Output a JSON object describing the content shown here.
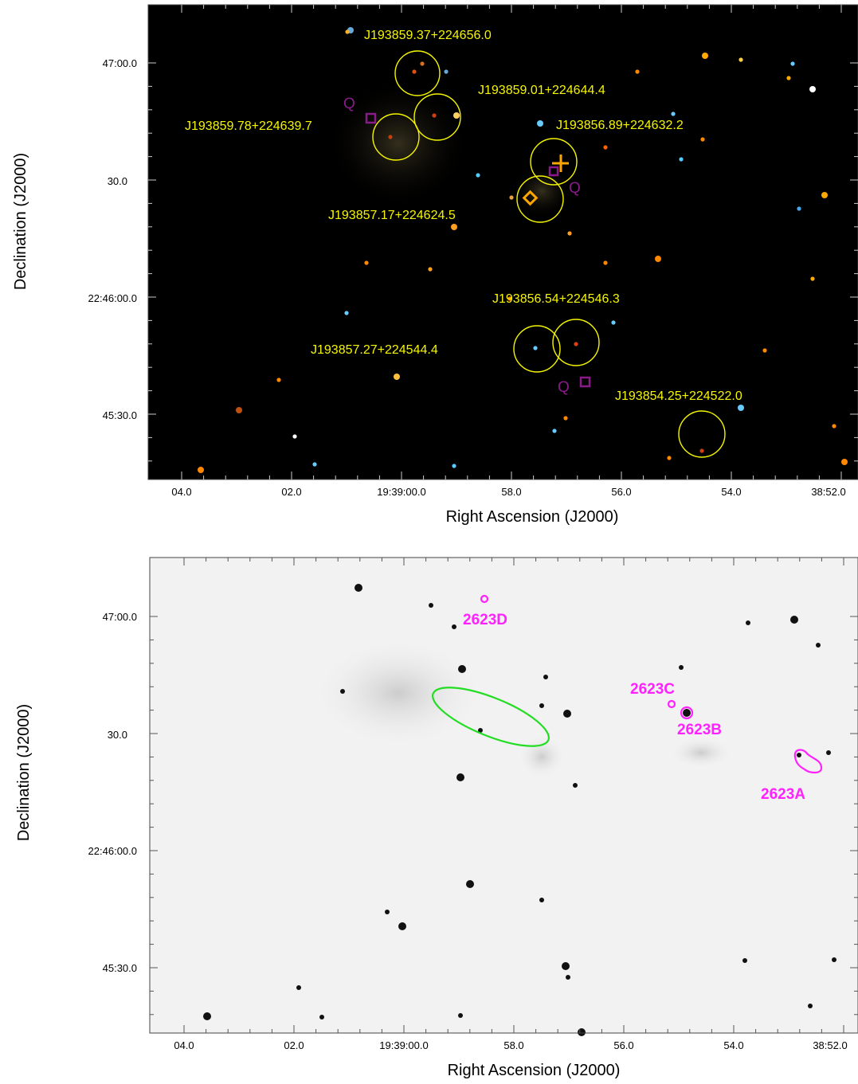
{
  "panels": {
    "top": {
      "x_axis_title": "Right Ascension (J2000)",
      "y_axis_title": "Declination (J2000)",
      "x_ticks": [
        "04.0",
        "02.0",
        "19:39:00.0",
        "58.0",
        "56.0",
        "54.0",
        "38:52.0"
      ],
      "y_ticks": [
        "47:00.0",
        "30.0",
        "22:46:00.0",
        "45:30.0"
      ],
      "source_labels": [
        "J193859.37+224656.0",
        "J193859.01+224644.4",
        "J193859.78+224639.7",
        "J193856.89+224632.2",
        "J193857.17+224624.5",
        "J193856.54+224546.3",
        "J193857.27+224544.4",
        "J193854.25+224522.0"
      ],
      "q_marker": "Q",
      "colors": {
        "background": "#000000",
        "circle": "#f5f500",
        "marker": "#8a1a8a",
        "orange": "#ffa500"
      }
    },
    "bottom": {
      "x_axis_title": "Right Ascension (J2000)",
      "y_axis_title": "Declination (J2000)",
      "x_ticks": [
        "04.0",
        "02.0",
        "19:39:00.0",
        "58.0",
        "56.0",
        "54.0",
        "38:52.0"
      ],
      "y_ticks": [
        "47:00.0",
        "30.0",
        "22:46:00.0",
        "45:30.0"
      ],
      "source_labels": [
        "2623D",
        "2623C",
        "2623B",
        "2623A"
      ],
      "colors": {
        "background": "#f2f2f2",
        "contour": "#ff22ff",
        "ellipse": "#22dd22"
      }
    }
  }
}
